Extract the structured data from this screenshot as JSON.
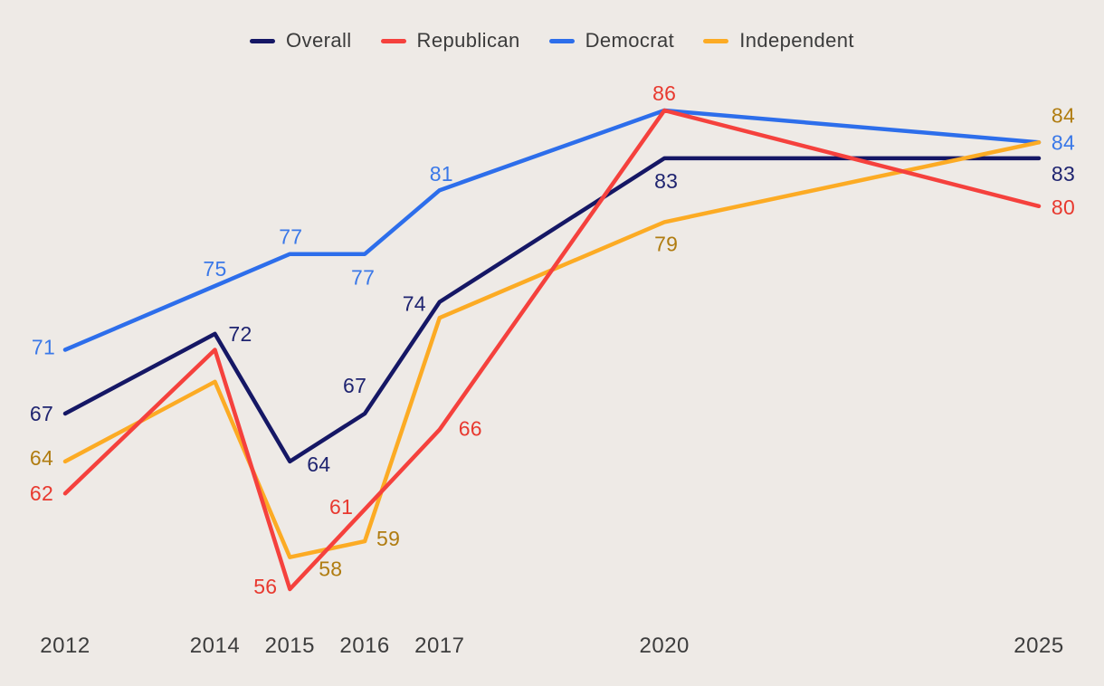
{
  "page": {
    "background": "#EEEAE6",
    "axis_label_color": "#3D3D3D",
    "legend_text_color": "#3B3B3B"
  },
  "chart_data": {
    "type": "line",
    "title": "",
    "xlabel": "",
    "ylabel": "",
    "x": [
      2012,
      2014,
      2015,
      2016,
      2017,
      2020,
      2025
    ],
    "x_tick_labels": [
      "2012",
      "2014",
      "2015",
      "2016",
      "2017",
      "2020",
      "2025"
    ],
    "xlim": [
      2012,
      2025
    ],
    "ylim": [
      54,
      88
    ],
    "grid": false,
    "axes_visible": false,
    "legend_position": "top-center",
    "legend_order": [
      "Overall",
      "Republican",
      "Democrat",
      "Independent"
    ],
    "z_order": [
      "Democrat",
      "Overall",
      "Independent",
      "Republican"
    ],
    "series": [
      {
        "name": "Overall",
        "color": "#151765",
        "label_color": "#1F2470",
        "values": [
          67,
          72,
          64,
          67,
          74,
          83,
          83
        ],
        "point_labels": [
          {
            "i": 0,
            "dx": -26,
            "dy": 0
          },
          {
            "i": 1,
            "dx": 28,
            "dy": 0
          },
          {
            "i": 2,
            "dx": 32,
            "dy": 3
          },
          {
            "i": 3,
            "dx": -11,
            "dy": -31
          },
          {
            "i": 4,
            "dx": -28,
            "dy": 2
          },
          {
            "i": 5,
            "dx": 2,
            "dy": 25
          },
          {
            "i": 6,
            "dx": 27,
            "dy": 17
          }
        ]
      },
      {
        "name": "Republican",
        "color": "#F5413D",
        "label_color": "#E8392F",
        "values": [
          62,
          71,
          56,
          61,
          66,
          86,
          80
        ],
        "point_labels": [
          {
            "i": 0,
            "dx": -26,
            "dy": 0
          },
          {
            "i": 2,
            "dx": -27,
            "dy": -3
          },
          {
            "i": 3,
            "dx": -26,
            "dy": -3
          },
          {
            "i": 4,
            "dx": 34,
            "dy": -1
          },
          {
            "i": 5,
            "dx": 0,
            "dy": -19
          },
          {
            "i": 6,
            "dx": 27,
            "dy": 1
          }
        ]
      },
      {
        "name": "Democrat",
        "color": "#2D6EEB",
        "label_color": "#3A78E8",
        "values": [
          71,
          75,
          77,
          77,
          81,
          86,
          84
        ],
        "point_labels": [
          {
            "i": 0,
            "dx": -24,
            "dy": -3
          },
          {
            "i": 1,
            "dx": 0,
            "dy": -19
          },
          {
            "i": 2,
            "dx": 1,
            "dy": -19
          },
          {
            "i": 3,
            "dx": -2,
            "dy": 26
          },
          {
            "i": 4,
            "dx": 2,
            "dy": -18
          },
          {
            "i": 6,
            "dx": 27,
            "dy": 0
          }
        ]
      },
      {
        "name": "Independent",
        "color": "#FCAB24",
        "label_color": "#B07C10",
        "values": [
          64,
          69,
          58,
          59,
          73,
          79,
          84
        ],
        "point_labels": [
          {
            "i": 0,
            "dx": -26,
            "dy": -4
          },
          {
            "i": 2,
            "dx": 45,
            "dy": 13
          },
          {
            "i": 3,
            "dx": 26,
            "dy": -3
          },
          {
            "i": 5,
            "dx": 2,
            "dy": 24
          },
          {
            "i": 6,
            "dx": 27,
            "dy": -30
          }
        ]
      }
    ]
  }
}
